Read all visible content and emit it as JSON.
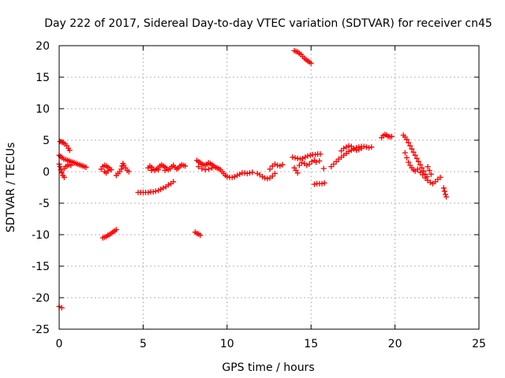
{
  "chart_data": {
    "type": "scatter",
    "title": "Day 222 of 2017, Sidereal Day-to-day VTEC variation (SDTVAR) for receiver cn45",
    "xlabel": "GPS time / hours",
    "ylabel": "SDTVAR / TECUs",
    "xlim": [
      0,
      25
    ],
    "ylim": [
      -25,
      20
    ],
    "xticks": [
      0,
      5,
      10,
      15,
      20,
      25
    ],
    "yticks": [
      20,
      15,
      10,
      5,
      0,
      -5,
      -10,
      -15,
      -20,
      -25
    ],
    "xtick_labels": [
      "0",
      "5",
      "10",
      "15",
      "20",
      "25"
    ],
    "ytick_labels": [
      "20",
      "15",
      "10",
      "5",
      "0",
      "-5",
      "-10",
      "-15",
      "-20",
      "-25"
    ],
    "grid": true,
    "legend": "none",
    "marker": "plus",
    "series_color": "#ff0000",
    "points": [
      [
        0.0,
        -21.4
      ],
      [
        0.15,
        -21.6
      ],
      [
        0.05,
        4.8
      ],
      [
        0.15,
        4.7
      ],
      [
        0.25,
        4.6
      ],
      [
        0.35,
        4.4
      ],
      [
        0.45,
        4.1
      ],
      [
        0.55,
        3.7
      ],
      [
        0.62,
        3.4
      ],
      [
        0.0,
        2.6
      ],
      [
        0.08,
        2.4
      ],
      [
        0.18,
        2.2
      ],
      [
        0.28,
        2.0
      ],
      [
        0.4,
        1.9
      ],
      [
        0.5,
        1.8
      ],
      [
        0.6,
        1.7
      ],
      [
        0.7,
        1.6
      ],
      [
        0.8,
        1.5
      ],
      [
        0.9,
        1.4
      ],
      [
        1.0,
        1.3
      ],
      [
        1.1,
        1.2
      ],
      [
        1.2,
        1.1
      ],
      [
        1.3,
        1.0
      ],
      [
        1.4,
        0.9
      ],
      [
        1.5,
        0.8
      ],
      [
        1.6,
        0.7
      ],
      [
        0.0,
        1.2
      ],
      [
        0.05,
        0.8
      ],
      [
        0.1,
        0.3
      ],
      [
        0.15,
        -0.2
      ],
      [
        0.22,
        -0.6
      ],
      [
        0.3,
        -0.9
      ],
      [
        0.3,
        0.5
      ],
      [
        0.4,
        0.8
      ],
      [
        0.5,
        1.0
      ],
      [
        0.6,
        1.1
      ],
      [
        0.7,
        1.0
      ],
      [
        2.5,
        0.4
      ],
      [
        2.6,
        0.8
      ],
      [
        2.7,
        1.0
      ],
      [
        2.8,
        0.9
      ],
      [
        2.9,
        0.7
      ],
      [
        3.0,
        0.5
      ],
      [
        3.1,
        0.3
      ],
      [
        2.7,
        0.0
      ],
      [
        2.8,
        -0.2
      ],
      [
        2.9,
        0.1
      ],
      [
        3.4,
        -0.6
      ],
      [
        3.5,
        -0.3
      ],
      [
        3.6,
        0.0
      ],
      [
        3.7,
        0.4
      ],
      [
        3.75,
        0.9
      ],
      [
        3.8,
        1.3
      ],
      [
        3.85,
        1.0
      ],
      [
        3.95,
        0.6
      ],
      [
        4.05,
        0.2
      ],
      [
        4.15,
        0.0
      ],
      [
        2.6,
        -10.5
      ],
      [
        2.7,
        -10.4
      ],
      [
        2.8,
        -10.3
      ],
      [
        2.9,
        -10.1
      ],
      [
        3.0,
        -10.0
      ],
      [
        3.1,
        -9.8
      ],
      [
        3.2,
        -9.6
      ],
      [
        3.3,
        -9.4
      ],
      [
        3.4,
        -9.2
      ],
      [
        4.7,
        -3.3
      ],
      [
        4.85,
        -3.3
      ],
      [
        5.0,
        -3.3
      ],
      [
        5.15,
        -3.3
      ],
      [
        5.3,
        -3.3
      ],
      [
        5.45,
        -3.2
      ],
      [
        5.6,
        -3.2
      ],
      [
        5.75,
        -3.1
      ],
      [
        5.9,
        -3.0
      ],
      [
        6.05,
        -2.8
      ],
      [
        6.2,
        -2.6
      ],
      [
        6.35,
        -2.4
      ],
      [
        6.5,
        -2.1
      ],
      [
        6.65,
        -1.9
      ],
      [
        6.8,
        -1.6
      ],
      [
        5.3,
        0.6
      ],
      [
        5.4,
        0.9
      ],
      [
        5.5,
        0.7
      ],
      [
        5.6,
        0.4
      ],
      [
        5.7,
        0.2
      ],
      [
        5.8,
        0.4
      ],
      [
        5.9,
        0.6
      ],
      [
        6.0,
        0.9
      ],
      [
        6.1,
        1.1
      ],
      [
        6.2,
        0.9
      ],
      [
        6.3,
        0.7
      ],
      [
        6.4,
        0.5
      ],
      [
        6.5,
        0.3
      ],
      [
        6.6,
        0.5
      ],
      [
        6.7,
        0.8
      ],
      [
        6.8,
        1.0
      ],
      [
        6.9,
        0.7
      ],
      [
        7.0,
        0.4
      ],
      [
        7.1,
        0.6
      ],
      [
        7.2,
        0.9
      ],
      [
        7.3,
        1.1
      ],
      [
        7.4,
        1.0
      ],
      [
        7.5,
        0.9
      ],
      [
        5.5,
        0.2
      ],
      [
        5.9,
        0.3
      ],
      [
        6.3,
        0.2
      ],
      [
        8.1,
        -9.6
      ],
      [
        8.2,
        -9.8
      ],
      [
        8.3,
        -9.9
      ],
      [
        8.4,
        -10.1
      ],
      [
        8.2,
        1.8
      ],
      [
        8.3,
        1.6
      ],
      [
        8.4,
        1.4
      ],
      [
        8.5,
        1.2
      ],
      [
        8.6,
        1.1
      ],
      [
        8.7,
        1.0
      ],
      [
        8.8,
        1.2
      ],
      [
        8.9,
        1.4
      ],
      [
        9.0,
        1.3
      ],
      [
        9.1,
        1.1
      ],
      [
        9.2,
        0.9
      ],
      [
        9.3,
        0.7
      ],
      [
        9.4,
        0.6
      ],
      [
        9.5,
        0.5
      ],
      [
        9.6,
        0.3
      ],
      [
        9.7,
        0.0
      ],
      [
        9.8,
        -0.3
      ],
      [
        9.9,
        -0.6
      ],
      [
        10.0,
        -0.8
      ],
      [
        10.15,
        -0.9
      ],
      [
        10.3,
        -0.9
      ],
      [
        10.45,
        -0.8
      ],
      [
        10.6,
        -0.6
      ],
      [
        10.75,
        -0.4
      ],
      [
        10.9,
        -0.2
      ],
      [
        11.05,
        -0.2
      ],
      [
        11.2,
        -0.3
      ],
      [
        11.35,
        -0.2
      ],
      [
        11.5,
        -0.1
      ],
      [
        8.3,
        0.8
      ],
      [
        8.5,
        0.5
      ],
      [
        8.7,
        0.3
      ],
      [
        8.9,
        0.4
      ],
      [
        9.1,
        0.6
      ],
      [
        11.8,
        -0.3
      ],
      [
        11.95,
        -0.5
      ],
      [
        12.1,
        -0.8
      ],
      [
        12.25,
        -1.0
      ],
      [
        12.4,
        -1.1
      ],
      [
        12.55,
        -1.0
      ],
      [
        12.7,
        -0.7
      ],
      [
        12.85,
        -0.3
      ],
      [
        12.55,
        0.4
      ],
      [
        12.7,
        0.9
      ],
      [
        12.85,
        1.2
      ],
      [
        13.0,
        1.0
      ],
      [
        13.15,
        0.9
      ],
      [
        13.3,
        1.1
      ],
      [
        14.0,
        19.2
      ],
      [
        14.1,
        19.1
      ],
      [
        14.2,
        19.0
      ],
      [
        14.3,
        18.8
      ],
      [
        14.4,
        18.6
      ],
      [
        14.5,
        18.3
      ],
      [
        14.6,
        18.0
      ],
      [
        14.7,
        17.8
      ],
      [
        14.8,
        17.6
      ],
      [
        14.9,
        17.4
      ],
      [
        15.0,
        17.2
      ],
      [
        13.9,
        2.3
      ],
      [
        14.05,
        2.2
      ],
      [
        14.2,
        2.1
      ],
      [
        14.35,
        2.0
      ],
      [
        14.5,
        2.1
      ],
      [
        14.65,
        2.3
      ],
      [
        14.8,
        2.5
      ],
      [
        14.95,
        2.6
      ],
      [
        15.1,
        2.7
      ],
      [
        15.25,
        2.7
      ],
      [
        15.4,
        2.8
      ],
      [
        15.55,
        2.8
      ],
      [
        14.0,
        0.6
      ],
      [
        14.1,
        0.2
      ],
      [
        14.2,
        -0.2
      ],
      [
        14.3,
        1.0
      ],
      [
        14.45,
        1.4
      ],
      [
        14.6,
        1.3
      ],
      [
        14.75,
        1.0
      ],
      [
        14.9,
        1.2
      ],
      [
        15.05,
        1.6
      ],
      [
        15.2,
        1.8
      ],
      [
        15.3,
        1.5
      ],
      [
        15.5,
        1.7
      ],
      [
        15.75,
        0.5
      ],
      [
        15.2,
        -2.0
      ],
      [
        15.35,
        -1.9
      ],
      [
        15.5,
        -1.9
      ],
      [
        15.65,
        -1.9
      ],
      [
        15.8,
        -1.8
      ],
      [
        16.2,
        0.8
      ],
      [
        16.35,
        1.2
      ],
      [
        16.5,
        1.6
      ],
      [
        16.65,
        2.0
      ],
      [
        16.8,
        2.3
      ],
      [
        16.95,
        2.6
      ],
      [
        17.1,
        2.9
      ],
      [
        17.25,
        3.2
      ],
      [
        17.4,
        3.4
      ],
      [
        17.55,
        3.6
      ],
      [
        17.7,
        3.8
      ],
      [
        17.85,
        3.9
      ],
      [
        18.0,
        4.0
      ],
      [
        18.15,
        4.0
      ],
      [
        18.3,
        3.9
      ],
      [
        18.45,
        3.8
      ],
      [
        18.6,
        3.9
      ],
      [
        16.8,
        3.3
      ],
      [
        16.95,
        3.7
      ],
      [
        17.1,
        3.9
      ],
      [
        17.25,
        4.1
      ],
      [
        17.4,
        4.0
      ],
      [
        17.55,
        3.7
      ],
      [
        17.7,
        3.4
      ],
      [
        17.85,
        3.5
      ],
      [
        18.0,
        3.7
      ],
      [
        19.2,
        5.4
      ],
      [
        19.3,
        5.7
      ],
      [
        19.4,
        5.9
      ],
      [
        19.5,
        5.8
      ],
      [
        19.6,
        5.6
      ],
      [
        19.7,
        5.5
      ],
      [
        19.8,
        5.6
      ],
      [
        20.5,
        5.8
      ],
      [
        20.6,
        5.5
      ],
      [
        20.7,
        5.1
      ],
      [
        20.8,
        4.6
      ],
      [
        20.9,
        4.1
      ],
      [
        21.0,
        3.6
      ],
      [
        21.1,
        3.1
      ],
      [
        21.2,
        2.6
      ],
      [
        21.3,
        2.1
      ],
      [
        21.4,
        1.6
      ],
      [
        21.5,
        1.1
      ],
      [
        21.6,
        0.6
      ],
      [
        21.7,
        0.1
      ],
      [
        21.8,
        -0.4
      ],
      [
        21.9,
        -0.8
      ],
      [
        20.6,
        3.0
      ],
      [
        20.7,
        2.2
      ],
      [
        20.8,
        1.5
      ],
      [
        20.9,
        1.0
      ],
      [
        21.0,
        0.6
      ],
      [
        21.1,
        0.3
      ],
      [
        21.2,
        0.1
      ],
      [
        21.35,
        0.4
      ],
      [
        21.5,
        -0.1
      ],
      [
        21.65,
        -0.5
      ],
      [
        21.8,
        -1.0
      ],
      [
        21.95,
        -1.4
      ],
      [
        22.1,
        -1.7
      ],
      [
        22.25,
        -1.9
      ],
      [
        22.4,
        -1.6
      ],
      [
        22.55,
        -1.2
      ],
      [
        22.7,
        -0.9
      ],
      [
        21.95,
        0.8
      ],
      [
        22.05,
        0.2
      ],
      [
        22.15,
        -0.4
      ],
      [
        22.9,
        -2.6
      ],
      [
        22.95,
        -3.1
      ],
      [
        23.0,
        -3.6
      ],
      [
        23.05,
        -4.0
      ]
    ]
  }
}
